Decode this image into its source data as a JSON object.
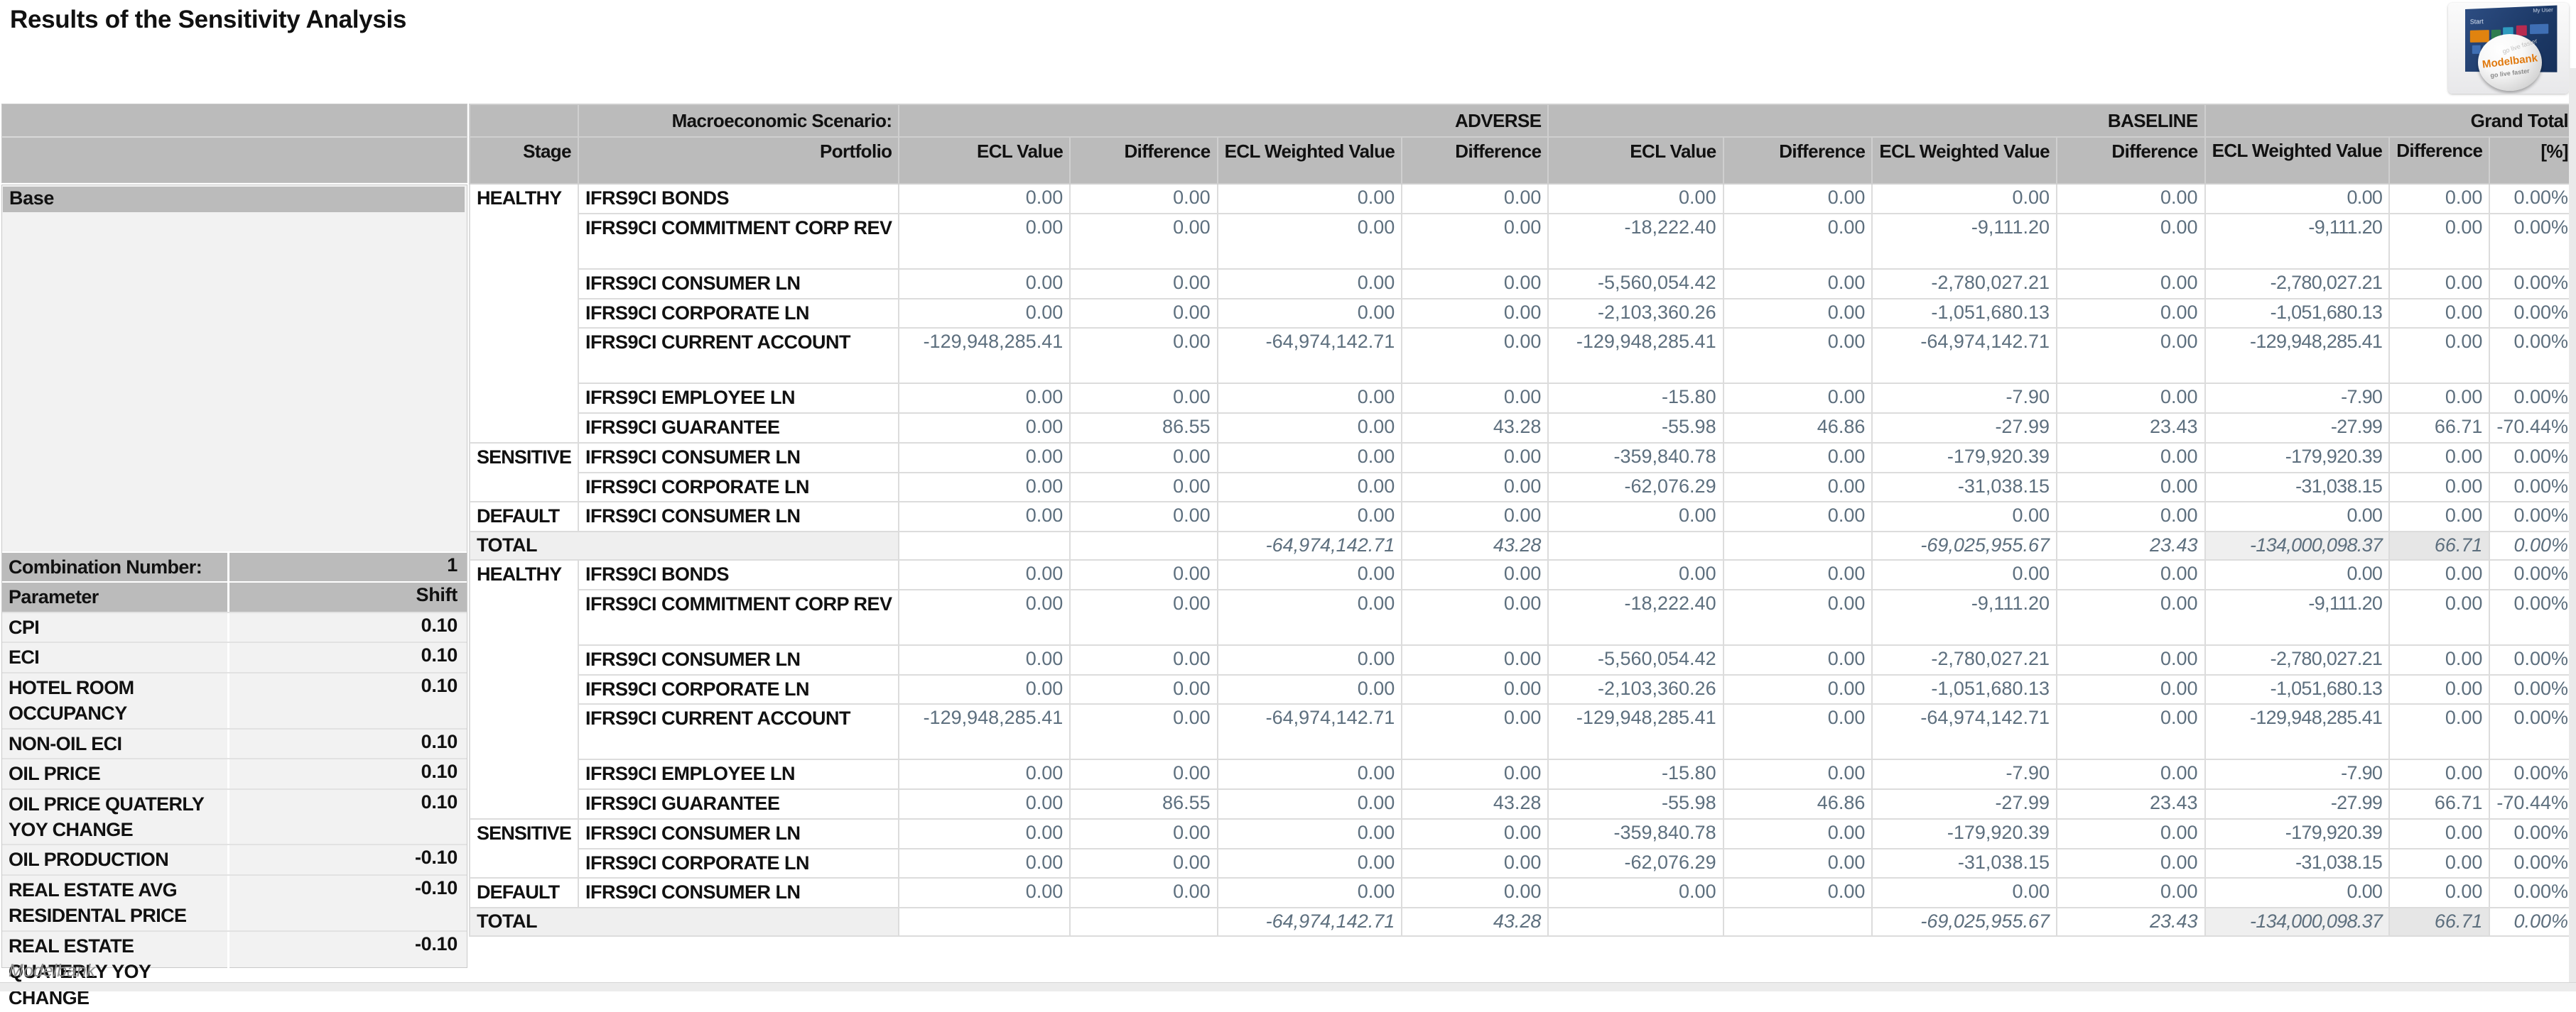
{
  "title": "Results of the Sensitivity Analysis",
  "statusbar": {
    "text": "Modelbank"
  },
  "logo": {
    "screen_title": "Start",
    "user_label": "My User",
    "brand": "Modelbank",
    "tagline": "go live faster"
  },
  "colors": {
    "header_gray": "#bbbbbb",
    "grand_total_gray": "#bdbdbd",
    "label_light_gray": "#f2f2f2",
    "total_row_bg": "#efefef",
    "number_text": "#5d6f7e",
    "alert_red": "#e02420"
  },
  "left_panel": {
    "base_label": "Base",
    "combination_label": "Combination Number:",
    "combination_value": "1",
    "parameter_header": "Parameter",
    "shift_header": "Shift",
    "parameters": [
      {
        "name": "CPI",
        "shift": "0.10"
      },
      {
        "name": "ECI",
        "shift": "0.10"
      },
      {
        "name": "HOTEL ROOM OCCUPANCY",
        "shift": "0.10"
      },
      {
        "name": "NON-OIL ECI",
        "shift": "0.10"
      },
      {
        "name": "OIL PRICE",
        "shift": "0.10"
      },
      {
        "name": "OIL PRICE QUATERLY YOY CHANGE",
        "shift": "0.10"
      },
      {
        "name": "OIL PRODUCTION",
        "shift": "-0.10"
      },
      {
        "name": "REAL ESTATE AVG RESIDENTAL PRICE",
        "shift": "-0.10"
      },
      {
        "name": "REAL ESTATE QUATERLY YOY CHANGE",
        "shift": "-0.10"
      }
    ]
  },
  "table": {
    "macro_label": "Macroeconomic Scenario:",
    "groups": [
      "ADVERSE",
      "BASELINE",
      "Grand Total"
    ],
    "columns": [
      "Stage",
      "Portfolio",
      "ECL Value",
      "Difference",
      "ECL Weighted Value",
      "Difference",
      "ECL Value",
      "Difference",
      "ECL Weighted Value",
      "Difference",
      "ECL Weighted Value",
      "Difference",
      "[%]"
    ],
    "blocks": [
      {
        "rows": [
          {
            "stage": "HEALTHY",
            "stage_rowspan": 7,
            "portfolio": "IFRS9CI BONDS",
            "cells": [
              "0.00",
              "0.00",
              "0.00",
              "0.00",
              "0.00",
              "0.00",
              "0.00",
              "0.00"
            ],
            "gt": [
              "0.00",
              "0.00",
              "0.00%"
            ]
          },
          {
            "portfolio": "IFRS9CI COMMITMENT CORP REV",
            "cells": [
              "0.00",
              "0.00",
              "0.00",
              "0.00",
              "-18,222.40",
              "0.00",
              "-9,111.20",
              "0.00"
            ],
            "gt": [
              "-9,111.20",
              "0.00",
              "0.00%"
            ]
          },
          {
            "portfolio": "IFRS9CI CONSUMER LN",
            "cells": [
              "0.00",
              "0.00",
              "0.00",
              "0.00",
              "-5,560,054.42",
              "0.00",
              "-2,780,027.21",
              "0.00"
            ],
            "gt": [
              "-2,780,027.21",
              "0.00",
              "0.00%"
            ]
          },
          {
            "portfolio": "IFRS9CI CORPORATE LN",
            "cells": [
              "0.00",
              "0.00",
              "0.00",
              "0.00",
              "-2,103,360.26",
              "0.00",
              "-1,051,680.13",
              "0.00"
            ],
            "gt": [
              "-1,051,680.13",
              "0.00",
              "0.00%"
            ]
          },
          {
            "portfolio": "IFRS9CI CURRENT ACCOUNT",
            "cells": [
              "-129,948,285.41",
              "0.00",
              "-64,974,142.71",
              "0.00",
              "-129,948,285.41",
              "0.00",
              "-64,974,142.71",
              "0.00"
            ],
            "gt": [
              "-129,948,285.41",
              "0.00",
              "0.00%"
            ]
          },
          {
            "portfolio": "IFRS9CI EMPLOYEE LN",
            "cells": [
              "0.00",
              "0.00",
              "0.00",
              "0.00",
              "-15.80",
              "0.00",
              "-7.90",
              "0.00"
            ],
            "gt": [
              "-7.90",
              "0.00",
              "0.00%"
            ]
          },
          {
            "portfolio": "IFRS9CI GUARANTEE",
            "cells": [
              "0.00",
              "86.55",
              "0.00",
              "43.28",
              "-55.98",
              "46.86",
              "-27.99",
              "23.43"
            ],
            "gt": [
              "-27.99",
              "66.71",
              "-70.44%"
            ],
            "red_pct": true
          },
          {
            "stage": "SENSITIVE",
            "stage_rowspan": 2,
            "portfolio": "IFRS9CI CONSUMER LN",
            "cells": [
              "0.00",
              "0.00",
              "0.00",
              "0.00",
              "-359,840.78",
              "0.00",
              "-179,920.39",
              "0.00"
            ],
            "gt": [
              "-179,920.39",
              "0.00",
              "0.00%"
            ]
          },
          {
            "portfolio": "IFRS9CI CORPORATE LN",
            "cells": [
              "0.00",
              "0.00",
              "0.00",
              "0.00",
              "-62,076.29",
              "0.00",
              "-31,038.15",
              "0.00"
            ],
            "gt": [
              "-31,038.15",
              "0.00",
              "0.00%"
            ]
          },
          {
            "stage": "DEFAULT",
            "stage_rowspan": 1,
            "portfolio": "IFRS9CI CONSUMER LN",
            "cells": [
              "0.00",
              "0.00",
              "0.00",
              "0.00",
              "0.00",
              "0.00",
              "0.00",
              "0.00"
            ],
            "gt": [
              "0.00",
              "0.00",
              "0.00%"
            ]
          },
          {
            "total_label": "TOTAL",
            "cells": [
              "",
              "",
              "-64,974,142.71",
              "43.28",
              "",
              "",
              "-69,025,955.67",
              "23.43"
            ],
            "gt": [
              "-134,000,098.37",
              "66.71",
              "0.00%"
            ]
          }
        ]
      },
      {
        "rows": [
          {
            "stage": "HEALTHY",
            "stage_rowspan": 7,
            "portfolio": "IFRS9CI BONDS",
            "cells": [
              "0.00",
              "0.00",
              "0.00",
              "0.00",
              "0.00",
              "0.00",
              "0.00",
              "0.00"
            ],
            "gt": [
              "0.00",
              "0.00",
              "0.00%"
            ]
          },
          {
            "portfolio": "IFRS9CI COMMITMENT CORP REV",
            "cells": [
              "0.00",
              "0.00",
              "0.00",
              "0.00",
              "-18,222.40",
              "0.00",
              "-9,111.20",
              "0.00"
            ],
            "gt": [
              "-9,111.20",
              "0.00",
              "0.00%"
            ]
          },
          {
            "portfolio": "IFRS9CI CONSUMER LN",
            "cells": [
              "0.00",
              "0.00",
              "0.00",
              "0.00",
              "-5,560,054.42",
              "0.00",
              "-2,780,027.21",
              "0.00"
            ],
            "gt": [
              "-2,780,027.21",
              "0.00",
              "0.00%"
            ]
          },
          {
            "portfolio": "IFRS9CI CORPORATE LN",
            "cells": [
              "0.00",
              "0.00",
              "0.00",
              "0.00",
              "-2,103,360.26",
              "0.00",
              "-1,051,680.13",
              "0.00"
            ],
            "gt": [
              "-1,051,680.13",
              "0.00",
              "0.00%"
            ]
          },
          {
            "portfolio": "IFRS9CI CURRENT ACCOUNT",
            "cells": [
              "-129,948,285.41",
              "0.00",
              "-64,974,142.71",
              "0.00",
              "-129,948,285.41",
              "0.00",
              "-64,974,142.71",
              "0.00"
            ],
            "gt": [
              "-129,948,285.41",
              "0.00",
              "0.00%"
            ]
          },
          {
            "portfolio": "IFRS9CI EMPLOYEE LN",
            "cells": [
              "0.00",
              "0.00",
              "0.00",
              "0.00",
              "-15.80",
              "0.00",
              "-7.90",
              "0.00"
            ],
            "gt": [
              "-7.90",
              "0.00",
              "0.00%"
            ]
          },
          {
            "portfolio": "IFRS9CI GUARANTEE",
            "cells": [
              "0.00",
              "86.55",
              "0.00",
              "43.28",
              "-55.98",
              "46.86",
              "-27.99",
              "23.43"
            ],
            "gt": [
              "-27.99",
              "66.71",
              "-70.44%"
            ],
            "red_pct": true
          },
          {
            "stage": "SENSITIVE",
            "stage_rowspan": 2,
            "portfolio": "IFRS9CI CONSUMER LN",
            "cells": [
              "0.00",
              "0.00",
              "0.00",
              "0.00",
              "-359,840.78",
              "0.00",
              "-179,920.39",
              "0.00"
            ],
            "gt": [
              "-179,920.39",
              "0.00",
              "0.00%"
            ]
          },
          {
            "portfolio": "IFRS9CI CORPORATE LN",
            "cells": [
              "0.00",
              "0.00",
              "0.00",
              "0.00",
              "-62,076.29",
              "0.00",
              "-31,038.15",
              "0.00"
            ],
            "gt": [
              "-31,038.15",
              "0.00",
              "0.00%"
            ]
          },
          {
            "stage": "DEFAULT",
            "stage_rowspan": 1,
            "portfolio": "IFRS9CI CONSUMER LN",
            "cells": [
              "0.00",
              "0.00",
              "0.00",
              "0.00",
              "0.00",
              "0.00",
              "0.00",
              "0.00"
            ],
            "gt": [
              "0.00",
              "0.00",
              "0.00%"
            ]
          },
          {
            "total_label": "TOTAL",
            "cells": [
              "",
              "",
              "-64,974,142.71",
              "43.28",
              "",
              "",
              "-69,025,955.67",
              "23.43"
            ],
            "gt": [
              "-134,000,098.37",
              "66.71",
              "0.00%"
            ]
          }
        ]
      }
    ]
  }
}
